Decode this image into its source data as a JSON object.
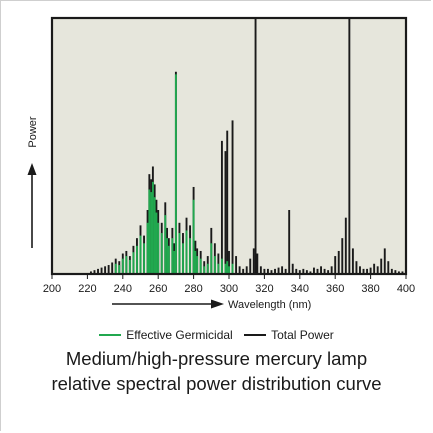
{
  "title_lines": [
    "Medium/high-pressure mercury lamp",
    "relative spectral power distribution curve"
  ],
  "legend": [
    {
      "label": "Effective Germicidal",
      "color": "#21a84f"
    },
    {
      "label": "Total Power",
      "color": "#1a1a1a"
    }
  ],
  "colors": {
    "plot_background": "#e6e6dc",
    "germicidal": "#21a84f",
    "total": "#1a1a1a"
  },
  "chart_data": {
    "type": "bar",
    "title": "Medium/high-pressure mercury lamp relative spectral power distribution curve",
    "xlabel": "Wavelength (nm)",
    "ylabel": "Power",
    "xlim": [
      200,
      400
    ],
    "ylim": [
      0,
      100
    ],
    "x_ticks": [
      200,
      220,
      240,
      260,
      280,
      300,
      320,
      340,
      360,
      380,
      400
    ],
    "grid": false,
    "legend_position": "bottom",
    "series": [
      {
        "name": "Total Power",
        "points": [
          [
            222,
            1
          ],
          [
            224,
            1.5
          ],
          [
            226,
            2
          ],
          [
            228,
            2.5
          ],
          [
            230,
            3
          ],
          [
            232,
            3.5
          ],
          [
            234,
            4.5
          ],
          [
            236,
            6
          ],
          [
            238,
            5
          ],
          [
            240,
            8
          ],
          [
            242,
            9
          ],
          [
            244,
            7
          ],
          [
            246,
            11
          ],
          [
            248,
            14
          ],
          [
            250,
            19
          ],
          [
            252,
            15
          ],
          [
            254,
            25
          ],
          [
            255,
            39
          ],
          [
            256,
            37
          ],
          [
            257,
            42
          ],
          [
            258,
            35
          ],
          [
            259,
            29
          ],
          [
            260,
            25
          ],
          [
            262,
            20
          ],
          [
            264,
            28
          ],
          [
            265,
            18
          ],
          [
            266,
            14
          ],
          [
            268,
            18
          ],
          [
            269,
            12
          ],
          [
            270,
            79
          ],
          [
            272,
            20
          ],
          [
            274,
            16
          ],
          [
            276,
            22
          ],
          [
            278,
            19
          ],
          [
            280,
            34
          ],
          [
            281,
            13
          ],
          [
            282,
            10
          ],
          [
            284,
            9
          ],
          [
            286,
            5
          ],
          [
            288,
            7
          ],
          [
            290,
            18
          ],
          [
            292,
            12
          ],
          [
            294,
            8
          ],
          [
            296,
            52
          ],
          [
            298,
            48
          ],
          [
            299,
            56
          ],
          [
            300,
            9
          ],
          [
            302,
            60
          ],
          [
            304,
            7
          ],
          [
            306,
            3
          ],
          [
            308,
            2
          ],
          [
            310,
            3
          ],
          [
            312,
            6
          ],
          [
            314,
            10
          ],
          [
            315,
            100
          ],
          [
            316,
            8
          ],
          [
            318,
            3
          ],
          [
            320,
            2
          ],
          [
            322,
            2
          ],
          [
            324,
            1.5
          ],
          [
            326,
            2
          ],
          [
            328,
            2.5
          ],
          [
            330,
            3
          ],
          [
            332,
            2
          ],
          [
            334,
            25
          ],
          [
            336,
            4
          ],
          [
            338,
            2
          ],
          [
            340,
            1.5
          ],
          [
            342,
            2
          ],
          [
            344,
            1.5
          ],
          [
            346,
            1
          ],
          [
            348,
            2.5
          ],
          [
            350,
            2
          ],
          [
            352,
            3
          ],
          [
            354,
            2
          ],
          [
            356,
            1.5
          ],
          [
            358,
            3
          ],
          [
            360,
            7
          ],
          [
            362,
            9
          ],
          [
            364,
            14
          ],
          [
            366,
            22
          ],
          [
            368,
            100
          ],
          [
            370,
            10
          ],
          [
            372,
            5
          ],
          [
            374,
            3
          ],
          [
            376,
            2
          ],
          [
            378,
            2
          ],
          [
            380,
            2.5
          ],
          [
            382,
            4
          ],
          [
            384,
            3
          ],
          [
            386,
            6
          ],
          [
            388,
            10
          ],
          [
            390,
            5
          ],
          [
            392,
            2
          ],
          [
            394,
            1.5
          ],
          [
            396,
            1
          ],
          [
            398,
            1
          ]
        ]
      },
      {
        "name": "Effective Germicidal",
        "points": [
          [
            236,
            4
          ],
          [
            238,
            3.5
          ],
          [
            240,
            6
          ],
          [
            242,
            7
          ],
          [
            244,
            5.5
          ],
          [
            246,
            8.5
          ],
          [
            248,
            11
          ],
          [
            250,
            15
          ],
          [
            252,
            12
          ],
          [
            254,
            20
          ],
          [
            255,
            33
          ],
          [
            256,
            32
          ],
          [
            257,
            36
          ],
          [
            258,
            30
          ],
          [
            259,
            24
          ],
          [
            260,
            20
          ],
          [
            262,
            16
          ],
          [
            264,
            23
          ],
          [
            265,
            14
          ],
          [
            266,
            11
          ],
          [
            268,
            14
          ],
          [
            269,
            9
          ],
          [
            270,
            78
          ],
          [
            272,
            16
          ],
          [
            274,
            12
          ],
          [
            276,
            17
          ],
          [
            278,
            14
          ],
          [
            280,
            29
          ],
          [
            281,
            9
          ],
          [
            282,
            7
          ],
          [
            284,
            6
          ],
          [
            286,
            3
          ],
          [
            288,
            4
          ],
          [
            290,
            12
          ],
          [
            292,
            7
          ],
          [
            294,
            4
          ],
          [
            296,
            6
          ],
          [
            298,
            4
          ],
          [
            299,
            5
          ],
          [
            300,
            3
          ],
          [
            302,
            4
          ]
        ]
      }
    ]
  }
}
